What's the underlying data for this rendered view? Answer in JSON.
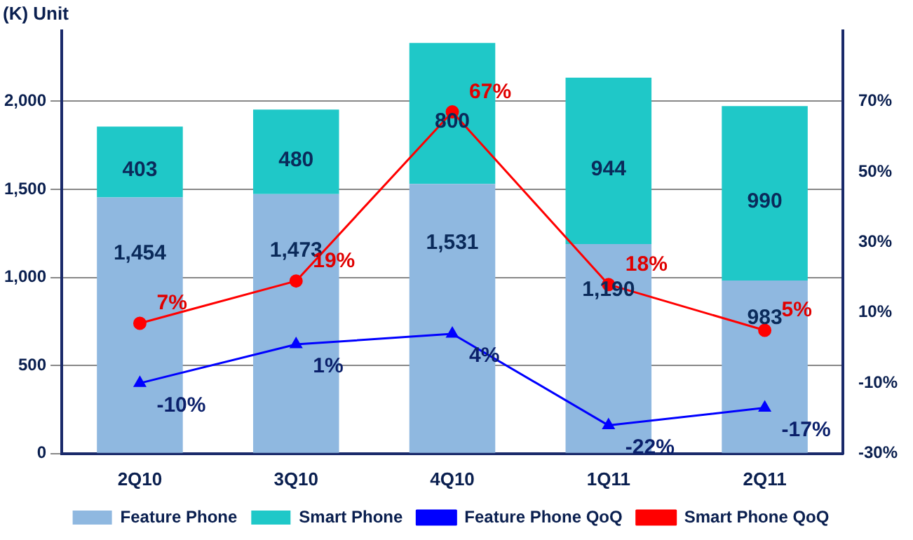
{
  "chart_data": {
    "type": "bar",
    "stacked": true,
    "ylabel": "(K) Unit",
    "categories": [
      "2Q10",
      "3Q10",
      "4Q10",
      "1Q11",
      "2Q11"
    ],
    "series": [
      {
        "name": "Feature Phone",
        "color": "#8fb8e0",
        "values": [
          1454,
          1473,
          1531,
          1190,
          983
        ],
        "value_labels": [
          "1,454",
          "1,473",
          "1,531",
          "1,190",
          "983"
        ]
      },
      {
        "name": "Smart Phone",
        "color": "#1fc8c8",
        "values": [
          403,
          480,
          800,
          944,
          990
        ],
        "value_labels": [
          "403",
          "480",
          "800",
          "944",
          "990"
        ]
      },
      {
        "name": "Feature Phone QoQ",
        "type": "line",
        "axis": "y2",
        "color": "#0000ff",
        "marker": "triangle",
        "values": [
          -10,
          1,
          4,
          -22,
          -17
        ],
        "value_labels": [
          "-10%",
          "1%",
          "4%",
          "-22%",
          "-17%"
        ]
      },
      {
        "name": "Smart Phone QoQ",
        "type": "line",
        "axis": "y2",
        "color": "#ff0000",
        "marker": "circle",
        "values": [
          7,
          19,
          67,
          18,
          5
        ],
        "value_labels": [
          "7%",
          "19%",
          "67%",
          "18%",
          "5%"
        ]
      }
    ],
    "ylim": [
      0,
      2400
    ],
    "yticks": [
      {
        "value": 0,
        "label": "0"
      },
      {
        "value": 500,
        "label": "500"
      },
      {
        "value": 1000,
        "label": "1,000"
      },
      {
        "value": 1500,
        "label": "1,500"
      },
      {
        "value": 2000,
        "label": "2,000"
      }
    ],
    "y2lim": [
      -30,
      90
    ],
    "y2ticks": [
      {
        "value": -30,
        "label": "-30%"
      },
      {
        "value": -10,
        "label": "-10%"
      },
      {
        "value": 10,
        "label": "10%"
      },
      {
        "value": 30,
        "label": "30%"
      },
      {
        "value": 50,
        "label": "50%"
      },
      {
        "value": 70,
        "label": "70%"
      }
    ],
    "grid": "y",
    "legend": "bottom"
  }
}
